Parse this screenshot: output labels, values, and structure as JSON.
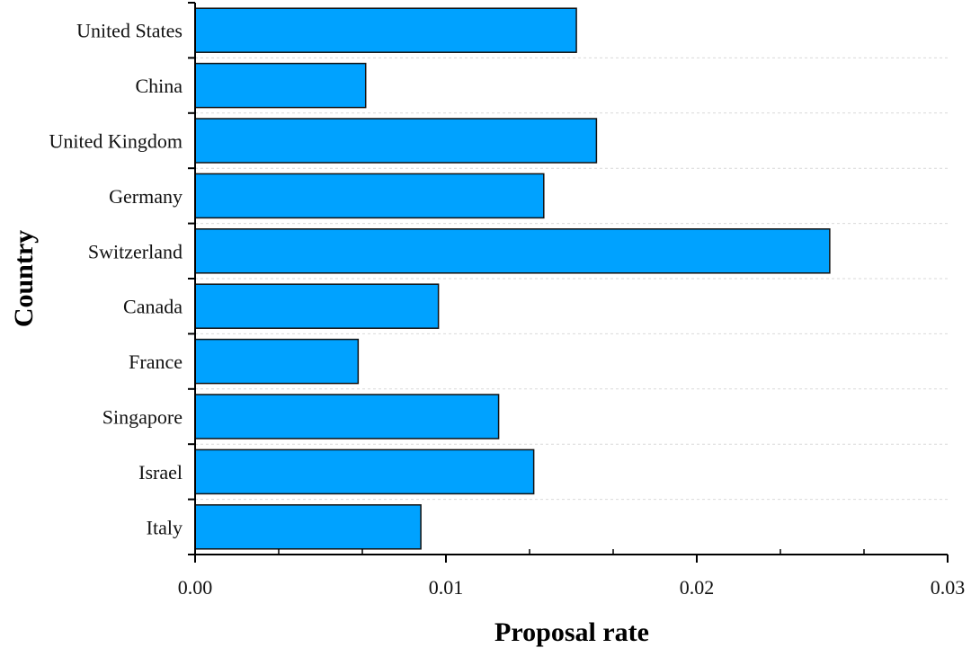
{
  "chart_data": {
    "type": "bar",
    "orientation": "horizontal",
    "categories": [
      "United States",
      "China",
      "United Kingdom",
      "Germany",
      "Switzerland",
      "Canada",
      "France",
      "Singapore",
      "Israel",
      "Italy"
    ],
    "values": [
      0.0152,
      0.0068,
      0.016,
      0.0139,
      0.0253,
      0.0097,
      0.0065,
      0.0121,
      0.0135,
      0.009
    ],
    "xlabel": "Proposal rate",
    "ylabel": "Country",
    "xlim": [
      0,
      0.03
    ],
    "xticks": [
      "0.00",
      "0.01",
      "0.02",
      "0.03"
    ],
    "grid": "horizontal dashed",
    "legend": "none",
    "colors": {
      "bar_fill": "#00A2FF",
      "bar_stroke": "#111111",
      "grid": "#d9d9d9",
      "axis": "#000000"
    }
  }
}
